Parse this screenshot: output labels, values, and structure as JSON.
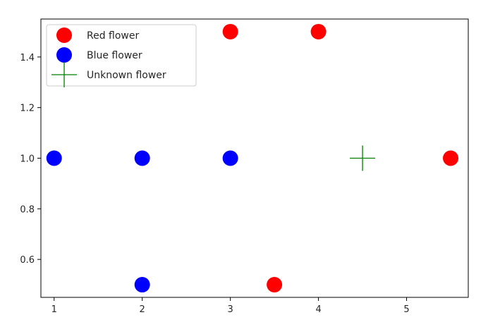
{
  "chart_data": {
    "type": "scatter",
    "title": "",
    "xlabel": "",
    "ylabel": "",
    "xlim": [
      0.85,
      5.7
    ],
    "ylim": [
      0.45,
      1.55
    ],
    "x_ticks": [
      {
        "value": 1,
        "label": "1"
      },
      {
        "value": 2,
        "label": "2"
      },
      {
        "value": 3,
        "label": "3"
      },
      {
        "value": 4,
        "label": "4"
      },
      {
        "value": 5,
        "label": "5"
      }
    ],
    "y_ticks": [
      {
        "value": 0.6,
        "label": "0.6"
      },
      {
        "value": 0.8,
        "label": "0.8"
      },
      {
        "value": 1.0,
        "label": "1.0"
      },
      {
        "value": 1.2,
        "label": "1.2"
      },
      {
        "value": 1.4,
        "label": "1.4"
      }
    ],
    "grid": false,
    "legend_position": "top-left",
    "series": [
      {
        "name": "Red flower",
        "marker": "circle",
        "color": "#ff0000",
        "points": [
          [
            3,
            1.5
          ],
          [
            4,
            1.5
          ],
          [
            3.5,
            0.5
          ],
          [
            5.5,
            1.0
          ]
        ]
      },
      {
        "name": "Blue flower",
        "marker": "circle",
        "color": "#0000ff",
        "points": [
          [
            1,
            1.0
          ],
          [
            2,
            1.0
          ],
          [
            3,
            1.0
          ],
          [
            2,
            0.5
          ]
        ]
      },
      {
        "name": "Unknown flower",
        "marker": "plus",
        "color": "#008000",
        "points": [
          [
            4.5,
            1.0
          ]
        ]
      }
    ]
  }
}
